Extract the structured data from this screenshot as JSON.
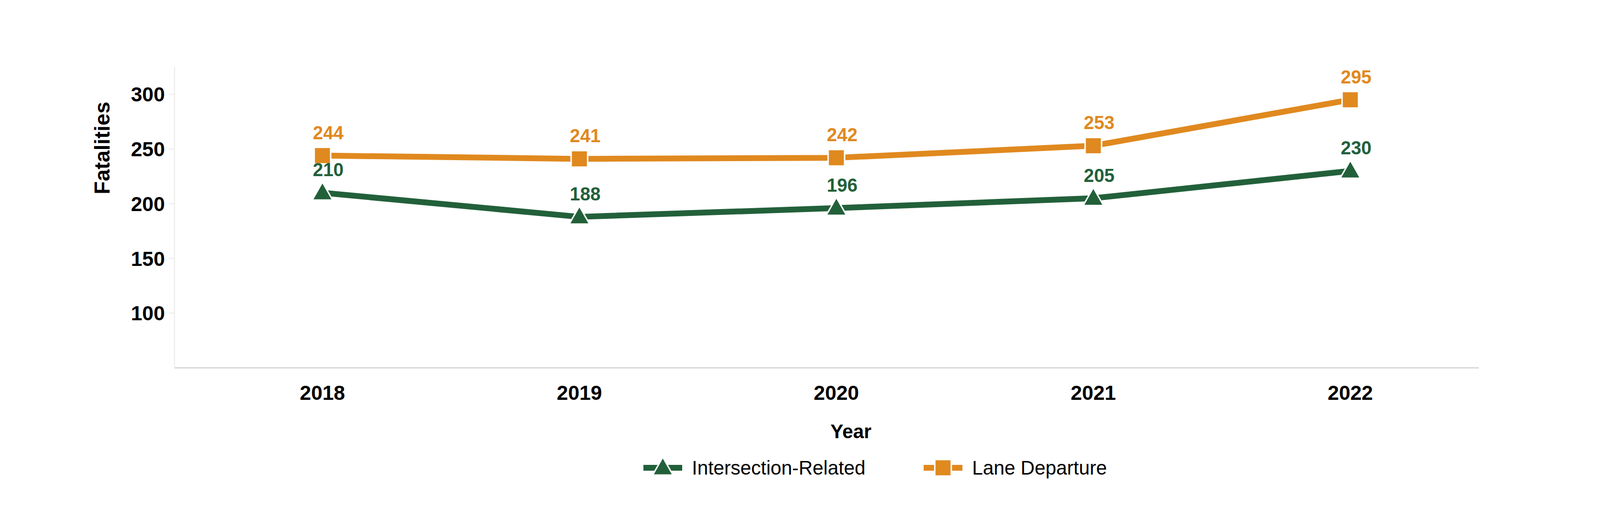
{
  "chart_data": {
    "type": "line",
    "x_label": "Year",
    "y_label": "Fatalities",
    "categories": [
      "2018",
      "2019",
      "2020",
      "2021",
      "2022"
    ],
    "series": [
      {
        "name": "Intersection-Related",
        "color": "#22603a",
        "marker": "triangle",
        "values": [
          210,
          188,
          196,
          205,
          230
        ]
      },
      {
        "name": "Lane Departure",
        "color": "#e0891f",
        "marker": "square",
        "values": [
          244,
          241,
          242,
          253,
          295
        ]
      }
    ],
    "ylim": [
      50,
      325
    ],
    "yticks": [
      100,
      150,
      200,
      250,
      300
    ],
    "grid": false,
    "data_labels": true,
    "legend": "bottom"
  }
}
